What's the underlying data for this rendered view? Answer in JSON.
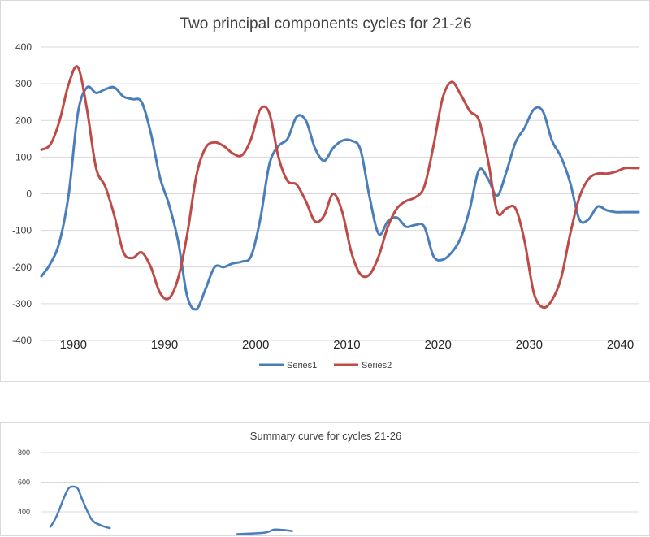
{
  "chart_data": [
    {
      "type": "line",
      "title": "Two principal components cycles for  21-26",
      "xlabel": "",
      "ylabel": "",
      "xlim": [
        1976.5,
        2042
      ],
      "ylim": [
        -400,
        400
      ],
      "yticks": [
        -400,
        -300,
        -200,
        -100,
        0,
        100,
        200,
        300,
        400
      ],
      "xticks": [
        1980,
        1990,
        2000,
        2010,
        2020,
        2030,
        2040
      ],
      "grid": true,
      "legend": "bottom",
      "series": [
        {
          "name": "Series1",
          "color": "#4a7ebb",
          "x": [
            1976.5,
            1977.5,
            1978.5,
            1979.5,
            1980.5,
            1981.5,
            1982.5,
            1983.5,
            1984.5,
            1985.5,
            1986.5,
            1987.5,
            1988.5,
            1989.5,
            1990.5,
            1991.5,
            1992.5,
            1993.5,
            1994.5,
            1995.5,
            1996.5,
            1997.5,
            1998.5,
            1999.5,
            2000.5,
            2001.5,
            2002.5,
            2003.5,
            2004.5,
            2005.5,
            2006.5,
            2007.5,
            2008.5,
            2009.5,
            2010.5,
            2011.5,
            2012.5,
            2013.5,
            2014.5,
            2015.5,
            2016.5,
            2017.5,
            2018.5,
            2019.5,
            2020.5,
            2021.5,
            2022.5,
            2023.5,
            2024.5,
            2025.5,
            2026.5,
            2027.5,
            2028.5,
            2029.5,
            2030.5,
            2031.5,
            2032.5,
            2033.5,
            2034.5,
            2035.5,
            2036.5,
            2037.5,
            2038.5,
            2039.5,
            2040.5,
            2041.5,
            2042
          ],
          "y": [
            -225,
            -190,
            -130,
            0,
            220,
            290,
            275,
            285,
            290,
            265,
            258,
            250,
            165,
            45,
            -30,
            -130,
            -280,
            -315,
            -260,
            -200,
            -200,
            -190,
            -185,
            -170,
            -70,
            80,
            130,
            150,
            210,
            200,
            125,
            90,
            125,
            145,
            145,
            120,
            -10,
            -110,
            -75,
            -65,
            -90,
            -85,
            -90,
            -170,
            -180,
            -160,
            -120,
            -40,
            65,
            40,
            -5,
            60,
            140,
            180,
            230,
            225,
            145,
            100,
            30,
            -70,
            -70,
            -35,
            -45,
            -50,
            -50,
            -50,
            -50
          ]
        },
        {
          "name": "Series2",
          "color": "#be4b48",
          "x": [
            1976.5,
            1977.5,
            1978.5,
            1979.5,
            1980.5,
            1981.5,
            1982.5,
            1983.5,
            1984.5,
            1985.5,
            1986.5,
            1987.5,
            1988.5,
            1989.5,
            1990.5,
            1991.5,
            1992.5,
            1993.5,
            1994.5,
            1995.5,
            1996.5,
            1997.5,
            1998.5,
            1999.5,
            2000.5,
            2001.5,
            2002.5,
            2003.5,
            2004.5,
            2005.5,
            2006.5,
            2007.5,
            2008.5,
            2009.5,
            2010.5,
            2011.5,
            2012.5,
            2013.5,
            2014.5,
            2015.5,
            2016.5,
            2017.5,
            2018.5,
            2019.5,
            2020.5,
            2021.5,
            2022.5,
            2023.5,
            2024.5,
            2025.5,
            2026.5,
            2027.5,
            2028.5,
            2029.5,
            2030.5,
            2031.5,
            2032.5,
            2033.5,
            2034.5,
            2035.5,
            2036.5,
            2037.5,
            2038.5,
            2039.5,
            2040.5,
            2041.5,
            2042
          ],
          "y": [
            120,
            135,
            200,
            300,
            345,
            230,
            70,
            20,
            -60,
            -160,
            -175,
            -160,
            -200,
            -270,
            -285,
            -230,
            -110,
            50,
            125,
            140,
            130,
            110,
            105,
            150,
            230,
            220,
            100,
            35,
            25,
            -20,
            -75,
            -60,
            0,
            -50,
            -160,
            -220,
            -220,
            -170,
            -90,
            -40,
            -20,
            -10,
            20,
            130,
            260,
            305,
            270,
            225,
            200,
            90,
            -50,
            -40,
            -40,
            -130,
            -270,
            -310,
            -290,
            -230,
            -110,
            -10,
            40,
            55,
            55,
            60,
            70,
            70,
            70
          ]
        }
      ]
    },
    {
      "type": "line",
      "title": "Summary curve for cycles 21-26",
      "xlabel": "",
      "ylabel": "",
      "xlim": [
        1976.5,
        2042
      ],
      "ylim": [
        200,
        800
      ],
      "yticks": [
        400,
        600,
        800
      ],
      "grid": true,
      "series": [
        {
          "color": "#4a7ebb",
          "x": [
            1977.5,
            1978,
            1978.5,
            1979,
            1979.5,
            1980,
            1980.5,
            1981,
            1982,
            1983,
            1984,
            1998,
            2001,
            2002,
            2003,
            2004
          ],
          "y": [
            300,
            350,
            420,
            500,
            560,
            570,
            555,
            480,
            350,
            310,
            290,
            250,
            260,
            280,
            278,
            270
          ]
        }
      ]
    }
  ]
}
